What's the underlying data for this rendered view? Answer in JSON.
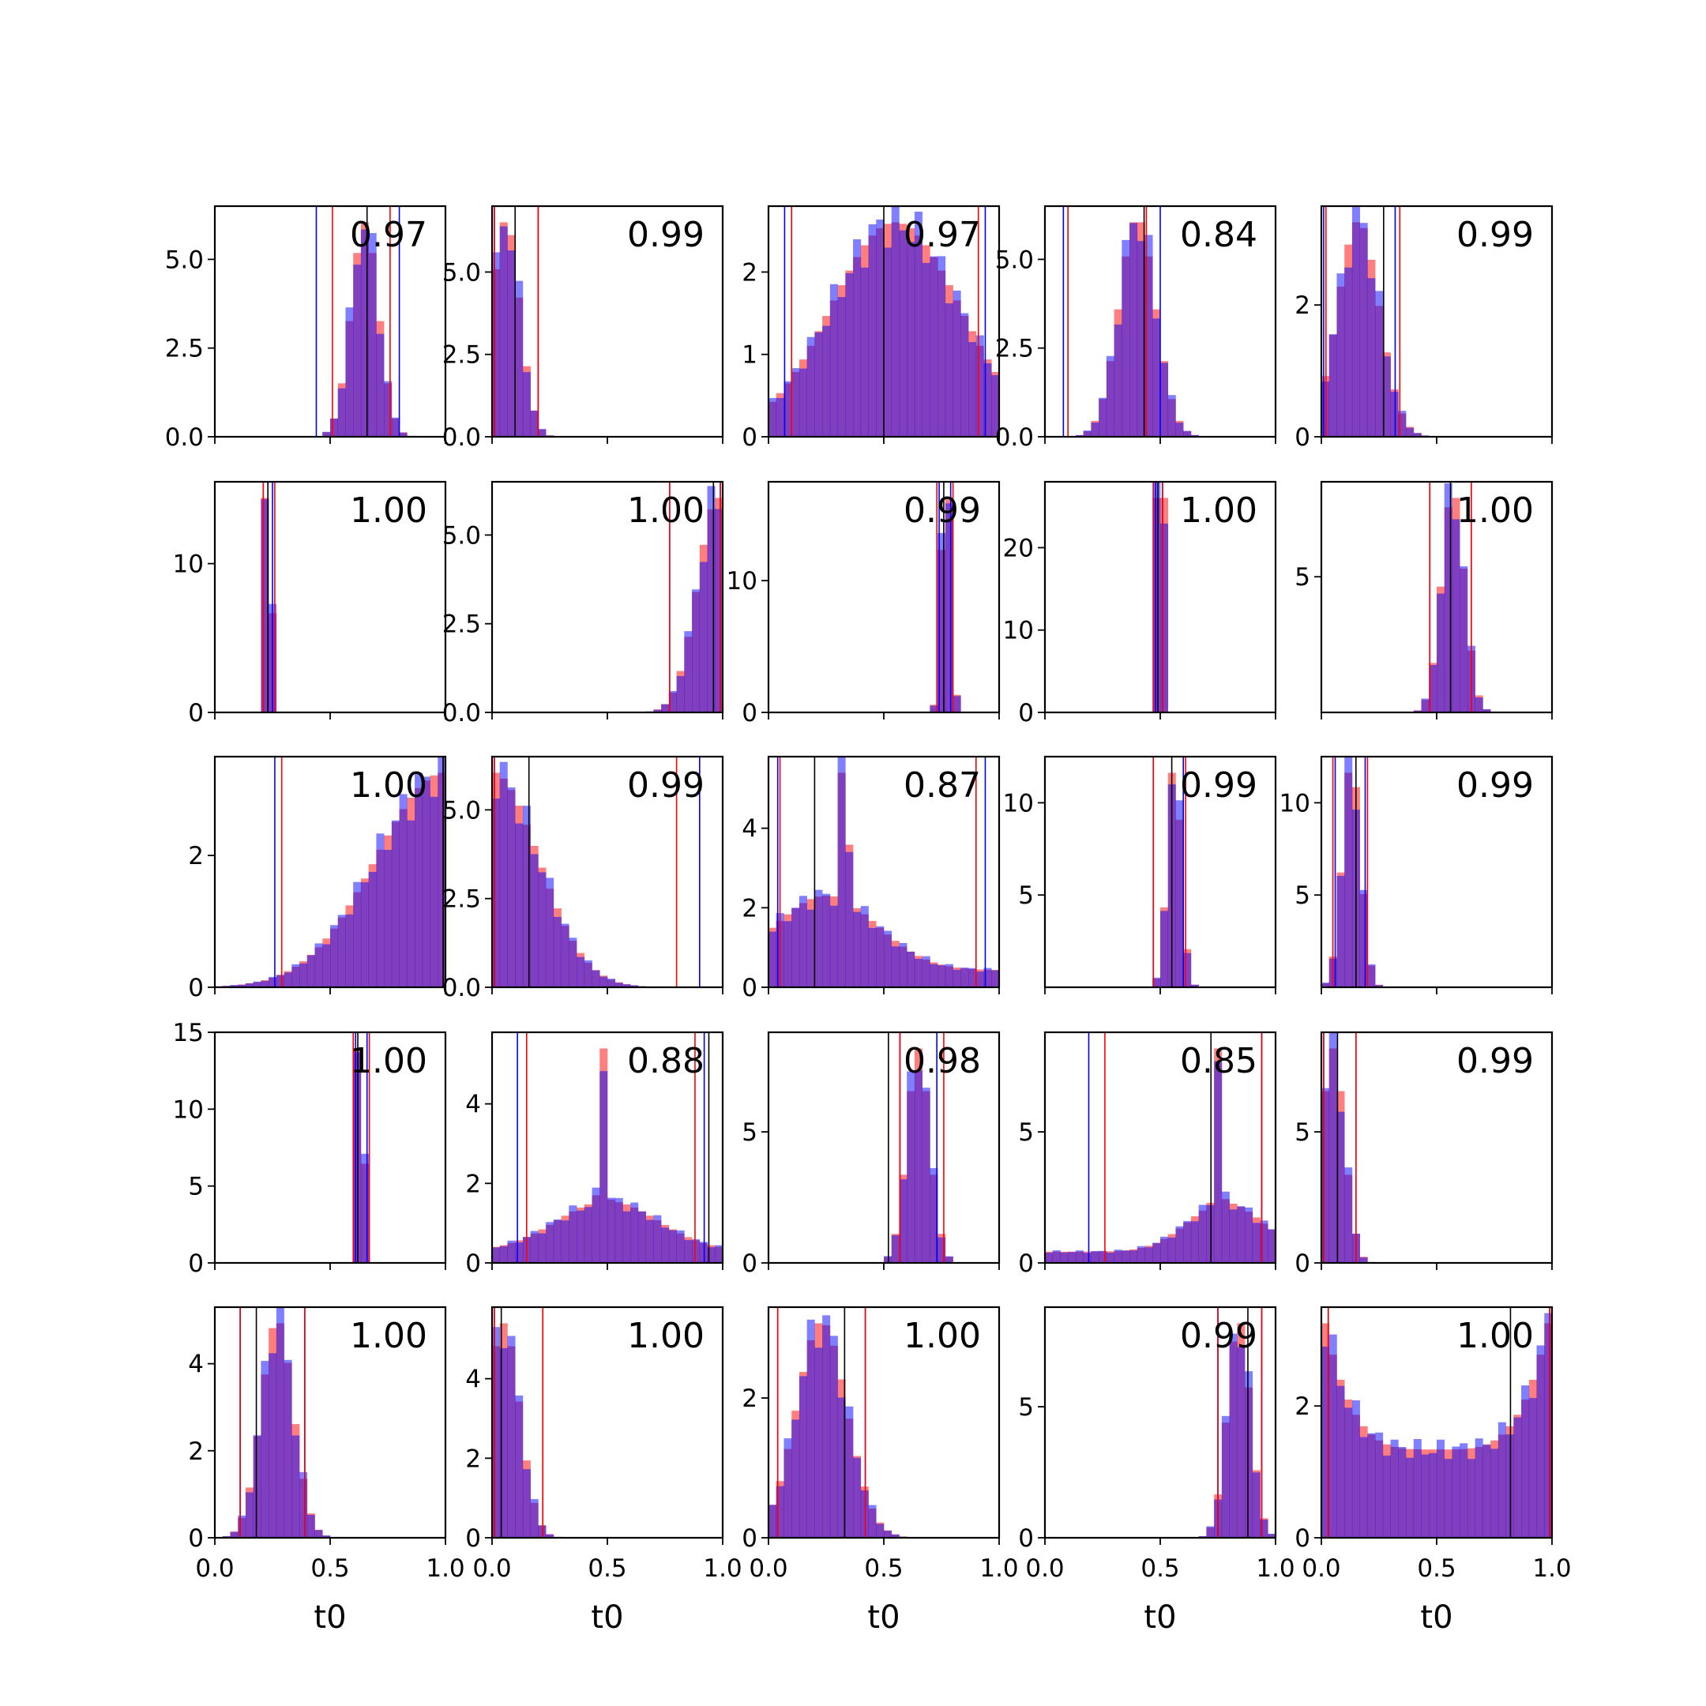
{
  "figure": {
    "background": "#ffffff"
  },
  "colors": {
    "hist_a": "#ff0000",
    "hist_b": "#0000ff",
    "hist_alpha": 0.5,
    "interval_a": "#ff0000",
    "interval_b": "#0000ff",
    "marker": "#000000"
  },
  "chart_data": {
    "type": "histogram-grid",
    "rows": 5,
    "cols": 5,
    "xlabel": "t0",
    "xlim": [
      0,
      1
    ],
    "xticks": [
      "0.0",
      "0.5",
      "1.0"
    ],
    "bins": 30,
    "panels": [
      {
        "score": "0.97",
        "center": 0.65,
        "spread": 0.06,
        "shape": "normal",
        "ylim": [
          0,
          6.5
        ],
        "yticks": [
          "0.0",
          "2.5",
          "5.0"
        ],
        "yvals": [
          0,
          2.5,
          5.0
        ],
        "ci_a": [
          0.51,
          0.76
        ],
        "ci_b": [
          0.44,
          0.8
        ],
        "marker": 0.66
      },
      {
        "score": "0.99",
        "center": 0.06,
        "spread": 0.06,
        "shape": "normal",
        "ylim": [
          0,
          7
        ],
        "yticks": [
          "0.0",
          "2.5",
          "5.0"
        ],
        "yvals": [
          0,
          2.5,
          5.0
        ],
        "ci_a": [
          0.01,
          0.2
        ],
        "ci_b": [
          0.01,
          0.2
        ],
        "marker": 0.1
      },
      {
        "score": "0.97",
        "center": 0.55,
        "spread": 0.28,
        "shape": "normal",
        "ylim": [
          0,
          2.8
        ],
        "yticks": [
          "0",
          "1",
          "2"
        ],
        "yvals": [
          0,
          1,
          2
        ],
        "ci_a": [
          0.1,
          0.91
        ],
        "ci_b": [
          0.07,
          0.94
        ],
        "marker": 0.5
      },
      {
        "score": "0.84",
        "center": 0.4,
        "spread": 0.08,
        "shape": "normal",
        "ylim": [
          0,
          6.5
        ],
        "yticks": [
          "0.0",
          "2.5",
          "5.0"
        ],
        "yvals": [
          0,
          2.5,
          5.0
        ],
        "ci_a": [
          0.1,
          0.44
        ],
        "ci_b": [
          0.08,
          0.5
        ],
        "marker": 0.43
      },
      {
        "score": "0.99",
        "center": 0.16,
        "spread": 0.09,
        "shape": "normal",
        "ylim": [
          0,
          3.5
        ],
        "yticks": [
          "0",
          "2"
        ],
        "yvals": [
          0,
          2
        ],
        "ci_a": [
          0.02,
          0.34
        ],
        "ci_b": [
          0.01,
          0.32
        ],
        "marker": 0.27
      },
      {
        "score": "1.00",
        "center": 0.23,
        "spread": 0.012,
        "shape": "normal",
        "ylim": [
          0,
          15.5
        ],
        "yticks": [
          "0",
          "10"
        ],
        "yvals": [
          0,
          10
        ],
        "ci_a": [
          0.21,
          0.26
        ],
        "ci_b": [
          0.21,
          0.25
        ],
        "marker": 0.23
      },
      {
        "score": "1.00",
        "center": 0.98,
        "spread": 0.09,
        "shape": "normal",
        "ylim": [
          0,
          6.5
        ],
        "yticks": [
          "0.0",
          "2.5",
          "5.0"
        ],
        "yvals": [
          0,
          2.5,
          5.0
        ],
        "ci_a": [
          0.77,
          0.99
        ],
        "ci_b": [
          0.77,
          0.99
        ],
        "marker": 0.96
      },
      {
        "score": "0.99",
        "center": 0.77,
        "spread": 0.02,
        "shape": "normal",
        "ylim": [
          0,
          17.5
        ],
        "yticks": [
          "0",
          "10"
        ],
        "yvals": [
          0,
          10
        ],
        "ci_a": [
          0.73,
          0.8
        ],
        "ci_b": [
          0.74,
          0.79
        ],
        "marker": 0.76
      },
      {
        "score": "1.00",
        "center": 0.5,
        "spread": 0.012,
        "shape": "normal",
        "ylim": [
          0,
          28
        ],
        "yticks": [
          "0",
          "10",
          "20"
        ],
        "yvals": [
          0,
          10,
          20
        ],
        "ci_a": [
          0.47,
          0.51
        ],
        "ci_b": [
          0.48,
          0.51
        ],
        "marker": 0.49
      },
      {
        "score": "1.00",
        "center": 0.57,
        "spread": 0.05,
        "shape": "normal",
        "ylim": [
          0,
          8.5
        ],
        "yticks": [
          "5"
        ],
        "yvals": [
          5
        ],
        "ci_a": [
          0.47,
          0.65
        ],
        "ci_b": [
          0.47,
          0.65
        ],
        "marker": 0.56
      },
      {
        "score": "1.00",
        "center": 1.0,
        "spread": 0.3,
        "shape": "normal",
        "ylim": [
          0,
          3.5
        ],
        "yticks": [
          "0",
          "2"
        ],
        "yvals": [
          0,
          2
        ],
        "ci_a": [
          0.29,
          0.99
        ],
        "ci_b": [
          0.26,
          0.99
        ],
        "marker": 0.99
      },
      {
        "score": "0.99",
        "center": 0.0,
        "spread": 0.2,
        "shape": "normal",
        "ylim": [
          0,
          6.5
        ],
        "yticks": [
          "0.0",
          "2.5",
          "5.0"
        ],
        "yvals": [
          0,
          2.5,
          5.0
        ],
        "ci_a": [
          0.01,
          0.8
        ],
        "ci_b": [
          0.01,
          0.9
        ],
        "marker": 0.16
      },
      {
        "score": "0.87",
        "center": 0.25,
        "spread": 0.22,
        "shape": "spike",
        "spike": 0.33,
        "ylim": [
          0,
          5.8
        ],
        "yticks": [
          "0",
          "2",
          "4"
        ],
        "yvals": [
          0,
          2,
          4
        ],
        "ci_a": [
          0.05,
          0.9
        ],
        "ci_b": [
          0.04,
          0.94
        ],
        "marker": 0.2
      },
      {
        "score": "0.99",
        "center": 0.56,
        "spread": 0.03,
        "shape": "normal",
        "ylim": [
          0,
          12.5
        ],
        "yticks": [
          "5",
          "10"
        ],
        "yvals": [
          5,
          10
        ],
        "ci_a": [
          0.47,
          0.61
        ],
        "ci_b": [
          0.47,
          0.6
        ],
        "marker": 0.55
      },
      {
        "score": "0.99",
        "center": 0.13,
        "spread": 0.04,
        "shape": "normal",
        "ylim": [
          0,
          12.5
        ],
        "yticks": [
          "5",
          "10"
        ],
        "yvals": [
          5,
          10
        ],
        "ci_a": [
          0.05,
          0.2
        ],
        "ci_b": [
          0.06,
          0.19
        ],
        "marker": 0.15
      },
      {
        "score": "1.00",
        "center": 0.63,
        "spread": 0.012,
        "shape": "normal",
        "ylim": [
          0,
          15
        ],
        "yticks": [
          "0",
          "5",
          "10",
          "15"
        ],
        "yvals": [
          0,
          5,
          10,
          15
        ],
        "ci_a": [
          0.6,
          0.67
        ],
        "ci_b": [
          0.61,
          0.66
        ],
        "marker": 0.62
      },
      {
        "score": "0.88",
        "center": 0.5,
        "spread": 0.22,
        "shape": "spike",
        "spike": 0.48,
        "ylim": [
          0,
          5.8
        ],
        "yticks": [
          "0",
          "2",
          "4"
        ],
        "yvals": [
          0,
          2,
          4
        ],
        "ci_a": [
          0.15,
          0.88
        ],
        "ci_b": [
          0.11,
          0.92
        ],
        "marker": 0.94
      },
      {
        "score": "0.98",
        "center": 0.65,
        "spread": 0.05,
        "shape": "normal",
        "ylim": [
          0,
          8.8
        ],
        "yticks": [
          "0",
          "5"
        ],
        "yvals": [
          0,
          5
        ],
        "ci_a": [
          0.57,
          0.76
        ],
        "ci_b": [
          0.57,
          0.73
        ],
        "marker": 0.52
      },
      {
        "score": "0.85",
        "center": 0.78,
        "spread": 0.16,
        "shape": "spike",
        "spike": 0.75,
        "ylim": [
          0,
          8.8
        ],
        "yticks": [
          "0",
          "5"
        ],
        "yvals": [
          0,
          5
        ],
        "ci_a": [
          0.26,
          0.94
        ],
        "ci_b": [
          0.19,
          0.94
        ],
        "marker": 0.72
      },
      {
        "score": "0.99",
        "center": 0.05,
        "spread": 0.05,
        "shape": "normal",
        "ylim": [
          0,
          8.8
        ],
        "yticks": [
          "0",
          "5"
        ],
        "yvals": [
          0,
          5
        ],
        "ci_a": [
          0.01,
          0.15
        ],
        "ci_b": [
          0.01,
          0.15
        ],
        "marker": 0.07
      },
      {
        "score": "1.00",
        "center": 0.27,
        "spread": 0.07,
        "shape": "normal",
        "ylim": [
          0,
          5.3
        ],
        "yticks": [
          "0",
          "2",
          "4"
        ],
        "yvals": [
          0,
          2,
          4
        ],
        "ci_a": [
          0.11,
          0.39
        ],
        "ci_b": [
          0.11,
          0.39
        ],
        "marker": 0.18
      },
      {
        "score": "1.00",
        "center": 0.05,
        "spread": 0.07,
        "shape": "normal",
        "ylim": [
          0,
          5.8
        ],
        "yticks": [
          "0",
          "2",
          "4"
        ],
        "yvals": [
          0,
          2,
          4
        ],
        "ci_a": [
          0.01,
          0.22
        ],
        "ci_b": [
          0.01,
          0.22
        ],
        "marker": 0.04
      },
      {
        "score": "1.00",
        "center": 0.23,
        "spread": 0.11,
        "shape": "normal",
        "ylim": [
          0,
          3.3
        ],
        "yticks": [
          "0",
          "2"
        ],
        "yvals": [
          0,
          2
        ],
        "ci_a": [
          0.04,
          0.42
        ],
        "ci_b": [
          0.04,
          0.42
        ],
        "marker": 0.33
      },
      {
        "score": "0.99",
        "center": 0.84,
        "spread": 0.05,
        "shape": "normal",
        "ylim": [
          0,
          8.8
        ],
        "yticks": [
          "0",
          "5"
        ],
        "yvals": [
          0,
          5
        ],
        "ci_a": [
          0.75,
          0.94
        ],
        "ci_b": [
          0.75,
          0.94
        ],
        "marker": 0.88
      },
      {
        "score": "1.00",
        "center": 0.5,
        "spread": 0.6,
        "shape": "ushape",
        "ylim": [
          0,
          3.5
        ],
        "yticks": [
          "0",
          "2"
        ],
        "yvals": [
          0,
          2
        ],
        "ci_a": [
          0.03,
          0.99
        ],
        "ci_b": [
          0.03,
          0.99
        ],
        "marker": 0.82
      }
    ]
  }
}
